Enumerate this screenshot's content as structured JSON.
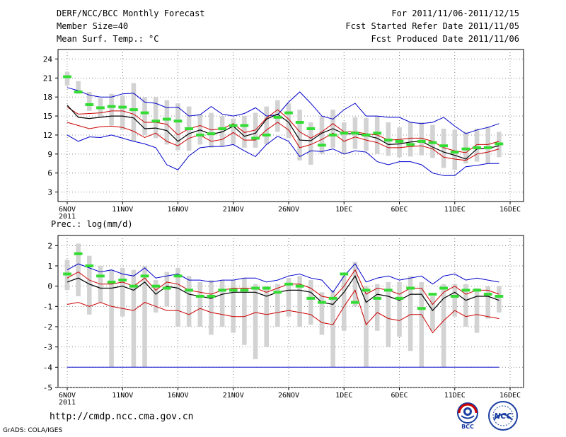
{
  "header": {
    "title": "DERF/NCC/BCC Monthly Forecast",
    "member_size": "Member Size=40",
    "variable": "Mean Surf. Temp.: °C",
    "forecast_period": "For 2011/11/06-2011/12/15",
    "started_refer": "Fcst Started Refer Date 2011/11/05",
    "produced": "Fcst Produced Date 2011/11/06"
  },
  "footer": {
    "url": "http://cmdp.ncc.cma.gov.cn",
    "grads": "GrADS: COLA/IGES",
    "logo_bcc": "BCC",
    "logo_ncc": "NCC"
  },
  "colors": {
    "ensemble_mean": "#000000",
    "spread_red": "#cc0000",
    "extreme_blue": "#0000cc",
    "member_box": "#d3d3d3",
    "median_marker": "#33dd33"
  },
  "chart_data": [
    {
      "type": "line",
      "title": "Mean Surf. Temp.: °C",
      "x_labels": [
        "6NOV",
        "11NOV",
        "16NOV",
        "21NOV",
        "26NOV",
        "1DEC",
        "6DEC",
        "11DEC",
        "16DEC"
      ],
      "x_sublabel": "2011",
      "days": 40,
      "yticks": [
        3,
        6,
        9,
        12,
        15,
        18,
        21,
        24
      ],
      "ylim": [
        1.5,
        25.5
      ],
      "series": [
        {
          "name": "max",
          "values": [
            19.5,
            19,
            18.3,
            18,
            18,
            18.5,
            18.6,
            17.2,
            17,
            16.3,
            16.4,
            15,
            15.2,
            16.5,
            15.3,
            15,
            15.4,
            16.3,
            15,
            15.2,
            17.2,
            18.8,
            17,
            15,
            14.5,
            16,
            17,
            15,
            15,
            14.8,
            14.8,
            14,
            13.8,
            14,
            14.8,
            13.4,
            12.2,
            12.8,
            13.2,
            13.8
          ]
        },
        {
          "name": "upper",
          "values": [
            16.4,
            15.3,
            15.4,
            15.5,
            15.8,
            15.8,
            15.3,
            14,
            14,
            13.7,
            12,
            13,
            13.5,
            12.8,
            13,
            13.8,
            12.4,
            12.8,
            14.7,
            16,
            14.5,
            12.5,
            11.5,
            12.5,
            13.8,
            12.5,
            12.5,
            12.2,
            12,
            11.2,
            11.3,
            11.5,
            11.5,
            11,
            10,
            9.5,
            9.2,
            10.5,
            10.5,
            11
          ]
        },
        {
          "name": "mean",
          "values": [
            16.7,
            14.8,
            14.6,
            14.8,
            15,
            15,
            14.7,
            13,
            13.1,
            12.7,
            11,
            12.2,
            12.8,
            12.1,
            12.5,
            13.4,
            11.8,
            12.3,
            14.5,
            15.3,
            14,
            11.2,
            11.1,
            12.3,
            13,
            12.2,
            12.2,
            11.9,
            11.5,
            10.5,
            10.6,
            10.9,
            11,
            10.1,
            9.3,
            8.8,
            8.2,
            9.8,
            9.9,
            10.3
          ]
        },
        {
          "name": "lower",
          "values": [
            14,
            13.5,
            13,
            13.3,
            13.4,
            13.2,
            12.6,
            11.6,
            12.3,
            11,
            10.3,
            11.5,
            12,
            11,
            11.3,
            12.4,
            11.2,
            11.2,
            12.8,
            14,
            12.8,
            10,
            10.5,
            11.3,
            12.3,
            11,
            11.7,
            11.2,
            10.8,
            10,
            10,
            10.2,
            10.3,
            9.8,
            8.5,
            8.2,
            8,
            9,
            9.3,
            9.8
          ]
        },
        {
          "name": "min",
          "values": [
            12,
            11,
            11.7,
            11.6,
            12,
            11.5,
            11,
            10.6,
            10,
            7.3,
            6.5,
            8.7,
            10,
            10.2,
            10.2,
            10.5,
            9.5,
            8.6,
            10.5,
            11.8,
            11,
            8.6,
            9.5,
            9.4,
            9.8,
            9,
            9.5,
            9.3,
            7.8,
            7.3,
            7.8,
            7.8,
            7.3,
            6,
            5.6,
            5.6,
            7,
            7.2,
            7.5,
            7.5
          ]
        }
      ],
      "boxes": {
        "top": [
          22,
          20.5,
          18.8,
          17.8,
          18.5,
          18.2,
          20.2,
          18,
          18,
          17.5,
          17,
          16.5,
          15.3,
          15.5,
          15,
          14.6,
          15,
          15.5,
          16.5,
          17.5,
          17,
          16,
          14,
          15,
          16,
          14,
          14.8,
          14.7,
          15,
          14,
          13.2,
          14,
          14,
          13.6,
          13,
          12.8,
          12.5,
          13,
          13.3,
          12.5
        ],
        "bottom": [
          19.8,
          18.5,
          15.8,
          14.8,
          13.5,
          12.8,
          11,
          12,
          11.5,
          10.5,
          9.6,
          9.5,
          10.5,
          10,
          10.2,
          10.5,
          10,
          10,
          10.5,
          12.5,
          11.5,
          8,
          7.3,
          9,
          10,
          9,
          9.8,
          9.5,
          9,
          8.7,
          8.5,
          8.6,
          8.8,
          8.4,
          6.8,
          6.5,
          7.5,
          7.8,
          7.5,
          8.5
        ],
        "median": [
          21.2,
          18.8,
          16.8,
          16.3,
          16.5,
          16.4,
          16,
          15.5,
          14.2,
          14.5,
          14.2,
          13,
          12,
          12.2,
          13,
          13.5,
          13.5,
          11.5,
          12,
          14.8,
          15.5,
          14,
          13,
          10.4,
          12,
          12.3,
          12.3,
          12,
          12.3,
          11.2,
          11,
          10.5,
          11,
          10.8,
          10.3,
          9.3,
          9.8,
          10,
          10,
          10.6
        ]
      }
    },
    {
      "type": "line",
      "title": "Prec.: log(mm/d)",
      "x_labels": [
        "6NOV",
        "11NOV",
        "16NOV",
        "21NOV",
        "26NOV",
        "1DEC",
        "6DEC",
        "11DEC",
        "16DEC"
      ],
      "x_sublabel": "2011",
      "days": 40,
      "yticks": [
        -5,
        -4,
        -3,
        -2,
        -1,
        0,
        1,
        2
      ],
      "ylim": [
        -5,
        2.5
      ],
      "baseline": -4,
      "series": [
        {
          "name": "max",
          "values": [
            0.8,
            1.1,
            0.9,
            0.7,
            0.8,
            0.6,
            0.5,
            0.9,
            0.4,
            0.5,
            0.6,
            0.3,
            0.3,
            0.2,
            0.3,
            0.3,
            0.4,
            0.4,
            0.2,
            0.3,
            0.5,
            0.6,
            0.4,
            0.3,
            -0.3,
            0.5,
            1.1,
            0.2,
            0.4,
            0.5,
            0.3,
            0.4,
            0.5,
            0.1,
            0.5,
            0.6,
            0.3,
            0.4,
            0.3,
            0.2
          ]
        },
        {
          "name": "upper",
          "values": [
            0.4,
            0.7,
            0.3,
            0.1,
            0.1,
            0.2,
            0,
            0.4,
            -0.2,
            0.2,
            0.1,
            -0.2,
            -0.3,
            -0.4,
            -0.2,
            -0.1,
            -0.1,
            -0.1,
            -0.3,
            -0.1,
            0.1,
            0.1,
            -0.1,
            -0.5,
            -0.6,
            0,
            0.8,
            -0.4,
            -0.1,
            -0.2,
            -0.4,
            -0.1,
            -0.1,
            -0.9,
            -0.3,
            0,
            -0.4,
            -0.2,
            -0.2,
            -0.4
          ]
        },
        {
          "name": "mean",
          "values": [
            0.2,
            0.4,
            0.1,
            -0.1,
            -0.1,
            0,
            -0.2,
            0.2,
            -0.4,
            0,
            -0.1,
            -0.4,
            -0.5,
            -0.6,
            -0.4,
            -0.3,
            -0.3,
            -0.3,
            -0.5,
            -0.3,
            -0.2,
            -0.2,
            -0.3,
            -0.8,
            -0.9,
            -0.3,
            0.5,
            -0.8,
            -0.4,
            -0.5,
            -0.7,
            -0.4,
            -0.4,
            -1.2,
            -0.6,
            -0.3,
            -0.7,
            -0.5,
            -0.5,
            -0.7
          ]
        },
        {
          "name": "lower",
          "values": [
            -0.9,
            -0.8,
            -1,
            -0.8,
            -1,
            -1.1,
            -1.2,
            -0.8,
            -1,
            -1.2,
            -1.2,
            -1.4,
            -1.1,
            -1.3,
            -1.4,
            -1.5,
            -1.5,
            -1.3,
            -1.4,
            -1.3,
            -1.2,
            -1.3,
            -1.4,
            -1.8,
            -1.9,
            -1,
            -0.2,
            -1.9,
            -1.3,
            -1.6,
            -1.7,
            -1.4,
            -1.4,
            -2.3,
            -1.7,
            -1.2,
            -1.5,
            -1.4,
            -1.5,
            -1.6
          ]
        },
        {
          "name": "min",
          "values": [
            -4,
            -4,
            -4,
            -4,
            -4,
            -4,
            -4,
            -4,
            -4,
            -4,
            -4,
            -4,
            -4,
            -4,
            -4,
            -4,
            -4,
            -4,
            -4,
            -4,
            -4,
            -4,
            -4,
            -4,
            -4,
            -4,
            -4,
            -4,
            -4,
            -4,
            -4,
            -4,
            -4,
            -4,
            -4,
            -4,
            -4,
            -4,
            -4,
            -4
          ]
        }
      ],
      "boxes": {
        "top": [
          1.3,
          2.1,
          1.5,
          1,
          0.8,
          0.9,
          0.8,
          1,
          0.3,
          0.7,
          0.9,
          0.5,
          0.2,
          0.3,
          0.3,
          0.3,
          0.4,
          0.1,
          0,
          0.1,
          0.4,
          0.5,
          0.3,
          -0.3,
          -0.2,
          0.5,
          1.2,
          0,
          0.1,
          0.2,
          0.2,
          0.5,
          0.2,
          -0.5,
          0.1,
          0.1,
          0.1,
          -0.1,
          0,
          0
        ],
        "bottom": [
          -0.2,
          -0.5,
          -1.4,
          -0.8,
          -4,
          -1.5,
          -4,
          -4,
          -1.3,
          -1,
          -2,
          -2,
          -2,
          -2.4,
          -2,
          -2.3,
          -2.9,
          -3.6,
          -3,
          -2,
          -1.5,
          -2,
          -1.9,
          -2.4,
          -4,
          -2.2,
          -1,
          -4,
          -2.2,
          -3,
          -2.5,
          -3.2,
          -4,
          -2.2,
          -4,
          -1.5,
          -2,
          -2.3,
          -1.6,
          -1.3
        ],
        "median": [
          0.6,
          1.6,
          1,
          0.5,
          0.2,
          0.3,
          0,
          0.5,
          0,
          -0.1,
          0.5,
          -0.2,
          -0.5,
          -0.5,
          -0.2,
          -0.2,
          -0.2,
          -0.1,
          -0.1,
          -0.3,
          0.1,
          0,
          -0.6,
          -0.8,
          -0.6,
          0.6,
          -0.8,
          -0.2,
          -0.6,
          -0.2,
          -0.6,
          -0.1,
          -1.1,
          -0.4,
          -0.1,
          -0.5,
          -0.2,
          -0.2,
          -0.4,
          -0.5
        ]
      }
    }
  ]
}
